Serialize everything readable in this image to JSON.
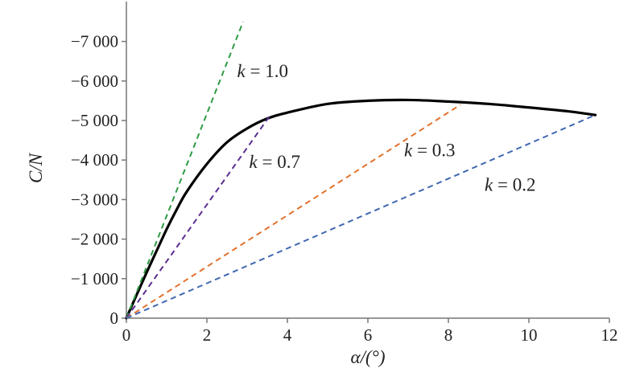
{
  "chart_data": {
    "type": "line",
    "xlabel": "α/(°)",
    "ylabel": "C/N",
    "xlim": [
      0,
      12
    ],
    "ylim": [
      0,
      -7500
    ],
    "x_ticks": [
      "0",
      "2",
      "4",
      "6",
      "8",
      "10",
      "12"
    ],
    "x_tick_values": [
      0,
      2,
      4,
      6,
      8,
      10,
      12
    ],
    "y_ticks": [
      "0",
      "−1 000",
      "−2 000",
      "−3 000",
      "−4 000",
      "−5 000",
      "−6 000",
      "−7 000"
    ],
    "y_tick_values": [
      0,
      -1000,
      -2000,
      -3000,
      -4000,
      -5000,
      -6000,
      -7000
    ],
    "grid": false,
    "series": [
      {
        "style": "solid",
        "color": "#000000",
        "x": [
          0,
          0.25,
          0.5,
          0.75,
          1.0,
          1.25,
          1.5,
          2.0,
          2.5,
          3.0,
          3.5,
          4.0,
          5.0,
          6.0,
          7.0,
          8.0,
          9.0,
          10.0,
          11.0,
          11.65
        ],
        "y": [
          0,
          -580,
          -1150,
          -1700,
          -2250,
          -2750,
          -3200,
          -3900,
          -4450,
          -4800,
          -5050,
          -5200,
          -5420,
          -5500,
          -5520,
          -5480,
          -5420,
          -5330,
          -5230,
          -5140
        ]
      },
      {
        "name": "k = 1.0",
        "style": "dashed",
        "color": "#2e9b45",
        "x": [
          0,
          2.9
        ],
        "y": [
          0,
          -7500
        ]
      },
      {
        "name": "k = 0.7",
        "style": "dashed",
        "color": "#5b2e91",
        "x": [
          0,
          3.55
        ],
        "y": [
          0,
          -5100
        ]
      },
      {
        "name": "k = 0.3",
        "style": "dashed",
        "color": "#e2722e",
        "x": [
          0,
          8.3
        ],
        "y": [
          0,
          -5400
        ]
      },
      {
        "name": "k = 0.2",
        "style": "dashed",
        "color": "#4068b0",
        "x": [
          0,
          11.65
        ],
        "y": [
          0,
          -5140
        ]
      }
    ],
    "annotations": [
      {
        "text": "k = 1.0",
        "x": 2.75,
        "y": -6100
      },
      {
        "text": "k = 0.7",
        "x": 3.05,
        "y": -3800
      },
      {
        "text": "k = 0.3",
        "x": 6.9,
        "y": -4100
      },
      {
        "text": "k = 0.2",
        "x": 8.9,
        "y": -3220
      }
    ]
  }
}
